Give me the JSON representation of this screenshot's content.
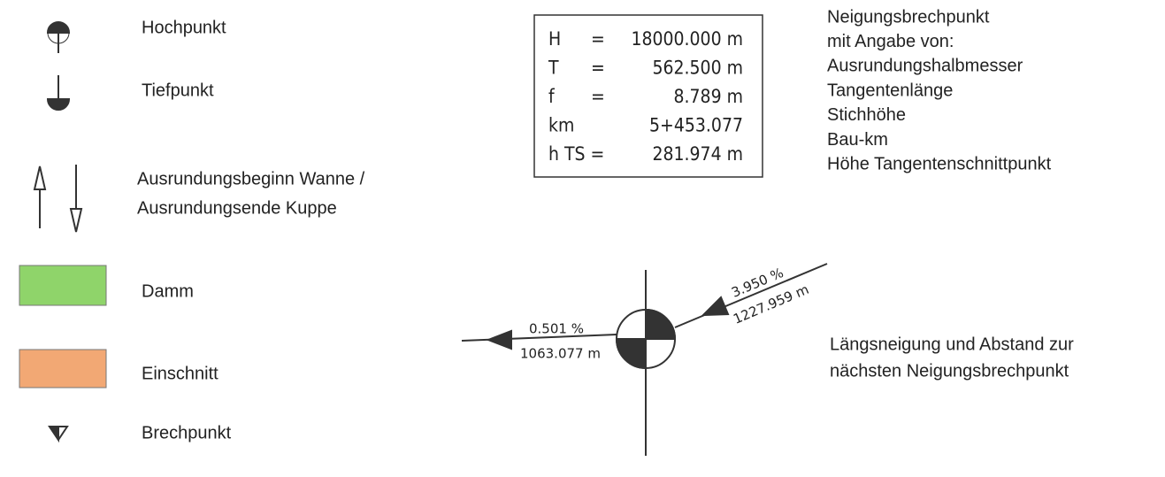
{
  "legend": [
    {
      "label": "Hochpunkt"
    },
    {
      "label": "Tiefpunkt"
    },
    {
      "label": [
        "Ausrundungsbeginn Wanne /",
        "Ausrundungsende Kuppe"
      ]
    },
    {
      "label": "Damm"
    },
    {
      "label": "Einschnitt"
    },
    {
      "label": "Brechpunkt"
    }
  ],
  "box": {
    "rows": [
      [
        "H",
        "=",
        "18000.000 m"
      ],
      [
        "T",
        "=",
        "562.500 m"
      ],
      [
        "f",
        "=",
        "8.789 m"
      ],
      [
        "km",
        "5+453.077"
      ],
      [
        "h TS =",
        "281.974 m"
      ]
    ]
  },
  "description": [
    "Neigungsbrechpunkt",
    "mit Angabe von:",
    "Ausrundungshalbmesser",
    "Tangentenlänge",
    "Stichhöhe",
    "Bau-km",
    "Höhe Tangentenschnittpunkt"
  ],
  "profile": {
    "left": {
      "slope": "0.501 %",
      "distance": "1063.077 m"
    },
    "right": {
      "slope": "3.950 %",
      "distance": "1227.959 m"
    },
    "description": [
      "Längsneigung und Abstand zur",
      "nächsten Neigungsbrechpunkt"
    ]
  }
}
